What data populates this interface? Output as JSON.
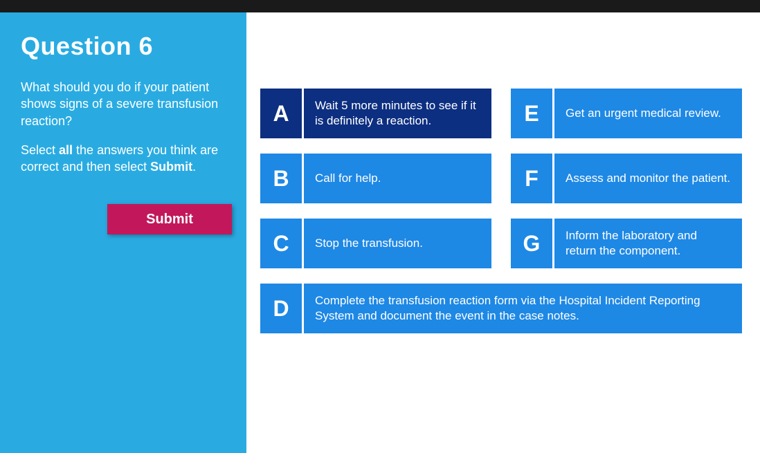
{
  "colors": {
    "topbar": "#1a1a1a",
    "sidebar_bg": "#29abe2",
    "submit_bg": "#c2185b",
    "option_bg": "#1e88e5",
    "option_selected_bg": "#0d2f81",
    "text_white": "#ffffff"
  },
  "question": {
    "title": "Question 6",
    "prompt": "What should you do if your patient shows signs of a severe transfusion reaction?",
    "instruction_pre": "Select ",
    "instruction_b1": "all",
    "instruction_mid": " the answers you think are correct and then select ",
    "instruction_b2": "Submit",
    "instruction_post": "."
  },
  "submit_label": "Submit",
  "options": {
    "A": {
      "letter": "A",
      "text": "Wait 5 more minutes to see if it is definitely a reaction.",
      "selected": true
    },
    "B": {
      "letter": "B",
      "text": "Call for help.",
      "selected": false
    },
    "C": {
      "letter": "C",
      "text": "Stop the transfusion.",
      "selected": false
    },
    "D": {
      "letter": "D",
      "text": "Complete the transfusion reaction form via the Hospital Incident Reporting System and document the event in the case notes.",
      "selected": false
    },
    "E": {
      "letter": "E",
      "text": "Get an urgent medical review.",
      "selected": false
    },
    "F": {
      "letter": "F",
      "text": "Assess and monitor the patient.",
      "selected": false
    },
    "G": {
      "letter": "G",
      "text": "Inform the laboratory and return the component.",
      "selected": false
    }
  }
}
